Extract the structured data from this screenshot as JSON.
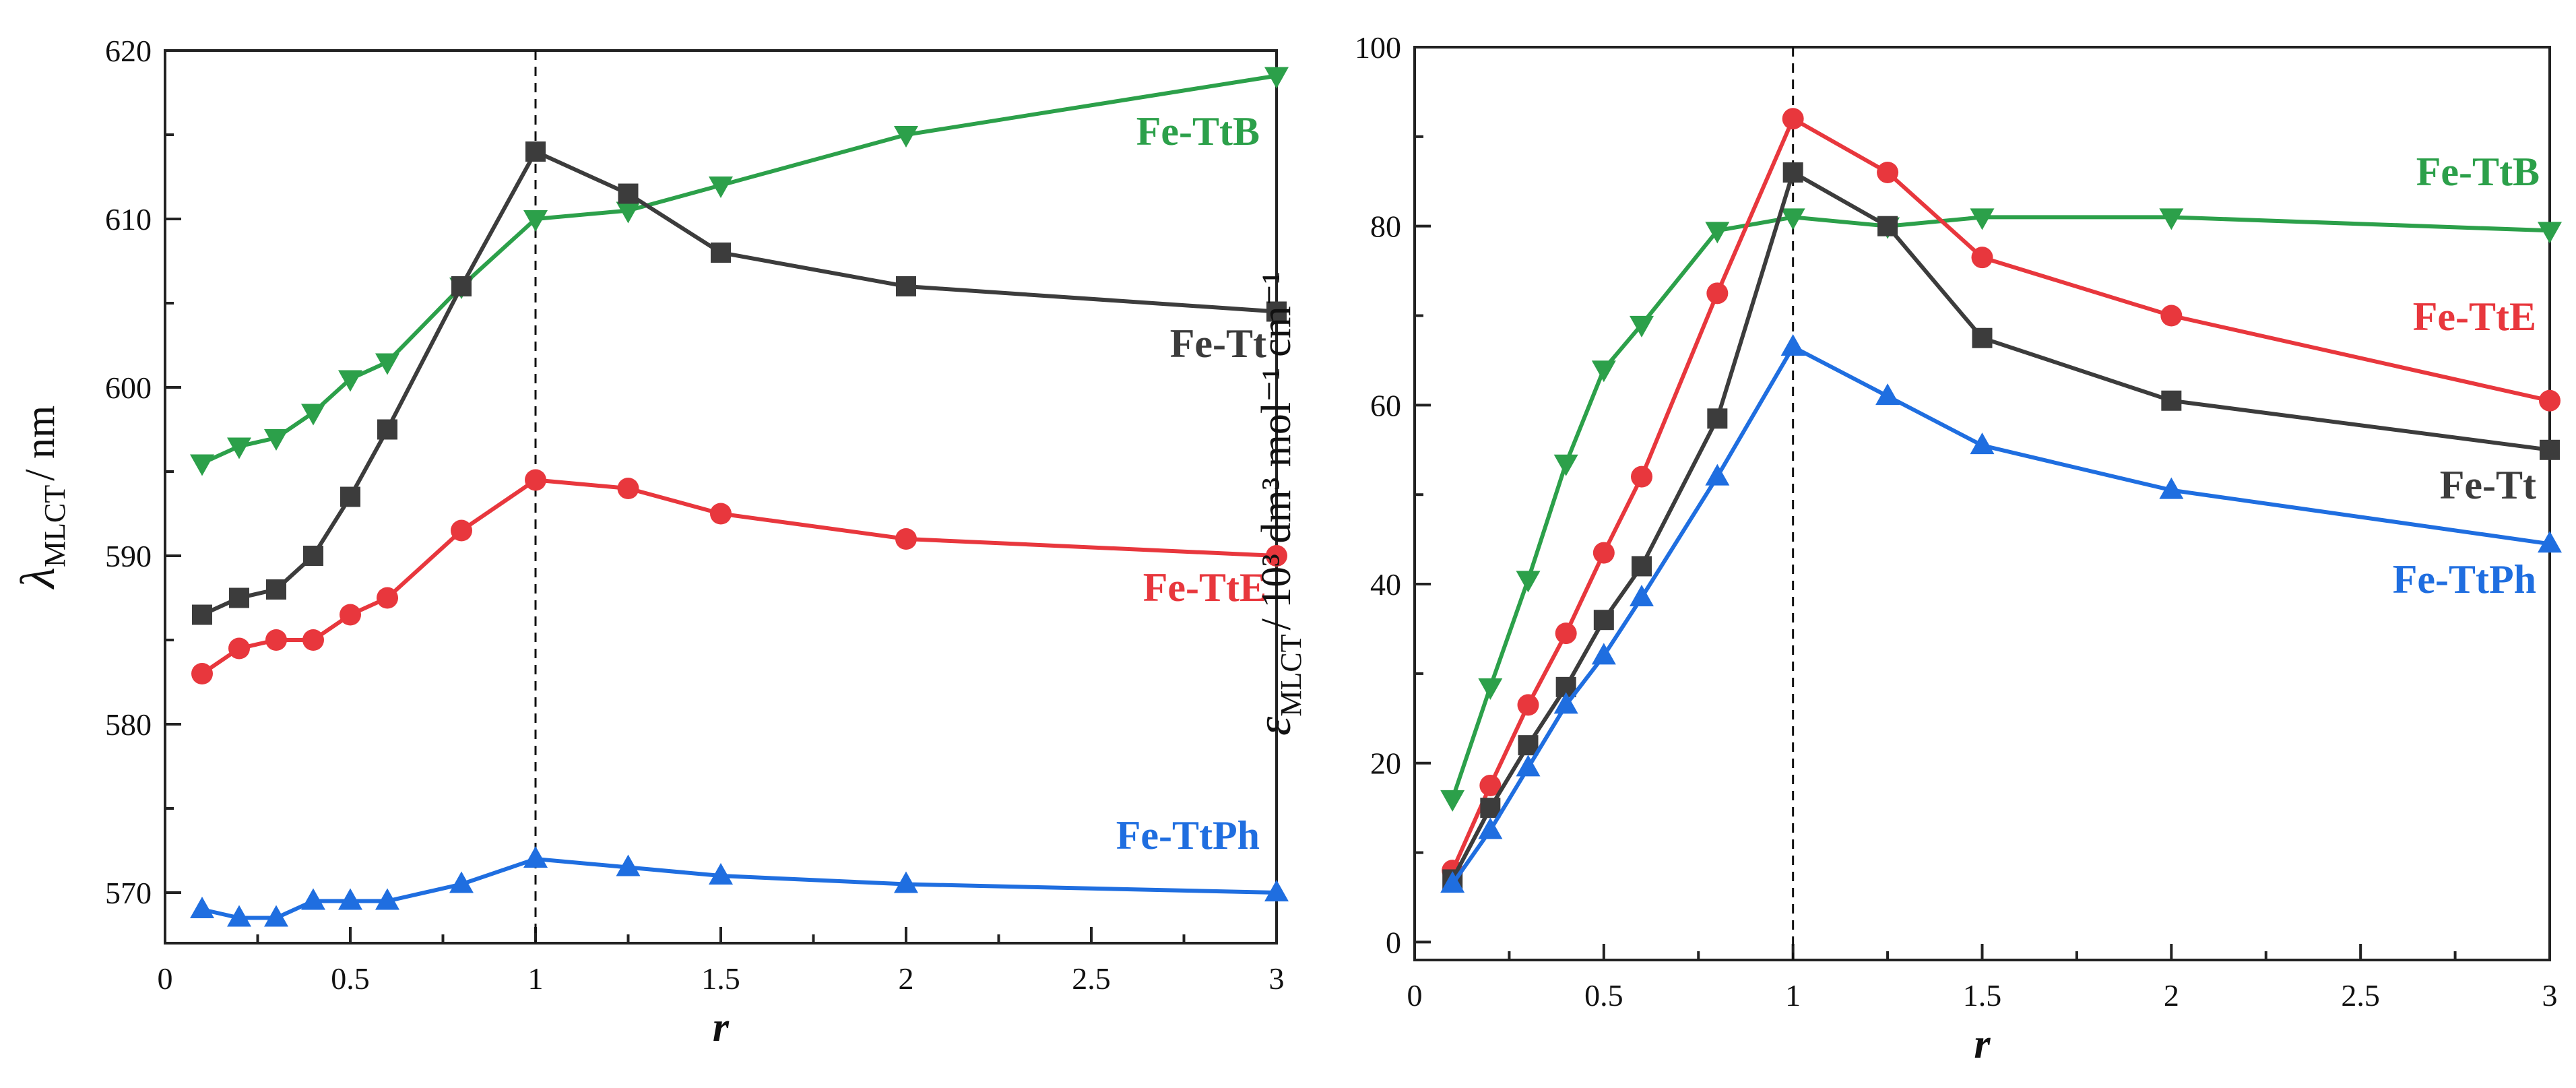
{
  "chart_data": [
    {
      "type": "line",
      "x": [
        0.1,
        0.2,
        0.3,
        0.4,
        0.5,
        0.6,
        0.8,
        1.0,
        1.25,
        1.5,
        2.0,
        3.0
      ],
      "xlim": [
        0,
        3
      ],
      "ylim": [
        567,
        620
      ],
      "xticks": [
        0,
        0.5,
        1,
        1.5,
        2,
        2.5,
        3
      ],
      "xtick_labels": [
        "0",
        "0.5",
        "1",
        "1.5",
        "2",
        "2.5",
        "3"
      ],
      "yticks": [
        570,
        580,
        590,
        600,
        610,
        620
      ],
      "ytick_labels": [
        "570",
        "580",
        "590",
        "600",
        "610",
        "620"
      ],
      "xlabel": "r",
      "ylabel_symbol": "λ",
      "ylabel_sub": "MLCT",
      "ylabel_unit": "/ nm",
      "vline_x": 1,
      "series": [
        {
          "name": "Fe-TtB",
          "color": "#2ca04a",
          "marker": "triangle-down",
          "values": [
            595.5,
            596.5,
            597,
            598.5,
            600.5,
            601.5,
            606,
            610,
            610.5,
            612,
            615,
            618.5
          ],
          "label_pos": "upper-right"
        },
        {
          "name": "Fe-Tt",
          "color": "#3c3c3c",
          "marker": "square",
          "values": [
            586.5,
            587.5,
            588,
            590,
            593.5,
            597.5,
            606,
            614,
            611.5,
            608,
            606,
            604.5
          ],
          "label_pos": "right"
        },
        {
          "name": "Fe-TtE",
          "color": "#e8373d",
          "marker": "circle",
          "values": [
            583,
            584.5,
            585,
            585,
            586.5,
            587.5,
            591.5,
            594.5,
            594,
            592.5,
            591,
            590
          ],
          "label_pos": "center"
        },
        {
          "name": "Fe-TtPh",
          "color": "#1f6ee0",
          "marker": "triangle-up",
          "values": [
            569,
            568.5,
            568.5,
            569.5,
            569.5,
            569.5,
            570.5,
            572,
            571.5,
            571,
            570.5,
            570
          ],
          "label_pos": "lower-right"
        }
      ]
    },
    {
      "type": "line",
      "x": [
        0.1,
        0.2,
        0.3,
        0.4,
        0.5,
        0.6,
        0.8,
        1.0,
        1.25,
        1.5,
        2.0,
        3.0
      ],
      "xlim": [
        0,
        3
      ],
      "ylim": [
        -2,
        100
      ],
      "xticks": [
        0,
        0.5,
        1,
        1.5,
        2,
        2.5,
        3
      ],
      "xtick_labels": [
        "0",
        "0.5",
        "1",
        "1.5",
        "2",
        "2.5",
        "3"
      ],
      "yticks": [
        0,
        20,
        40,
        60,
        80,
        100
      ],
      "ytick_labels": [
        "0",
        "20",
        "40",
        "60",
        "80",
        "100"
      ],
      "xlabel": "r",
      "ylabel_symbol": "ε",
      "ylabel_sub": "MLCT",
      "ylabel_unit": "/ 10³ dm³ mol⁻¹ cm⁻¹",
      "vline_x": 1,
      "series": [
        {
          "name": "Fe-TtB",
          "color": "#2ca04a",
          "marker": "triangle-down",
          "values": [
            16,
            28.5,
            40.5,
            53.5,
            64,
            69,
            79.5,
            81,
            80,
            81,
            81,
            79.5
          ],
          "label_pos": "upper-right"
        },
        {
          "name": "Fe-TtE",
          "color": "#e8373d",
          "marker": "circle",
          "values": [
            8,
            17.5,
            26.5,
            34.5,
            43.5,
            52,
            72.5,
            92,
            86,
            76.5,
            70,
            60.5
          ],
          "label_pos": "right"
        },
        {
          "name": "Fe-Tt",
          "color": "#3c3c3c",
          "marker": "square",
          "values": [
            7,
            15,
            22,
            28.5,
            36,
            42,
            58.5,
            86,
            80,
            67.5,
            60.5,
            55
          ],
          "label_pos": "right"
        },
        {
          "name": "Fe-TtPh",
          "color": "#1f6ee0",
          "marker": "triangle-up",
          "values": [
            6.5,
            12.5,
            19.5,
            26.5,
            32,
            38.5,
            52,
            66.5,
            61,
            55.5,
            50.5,
            44.5
          ],
          "label_pos": "lower-right"
        }
      ]
    }
  ]
}
